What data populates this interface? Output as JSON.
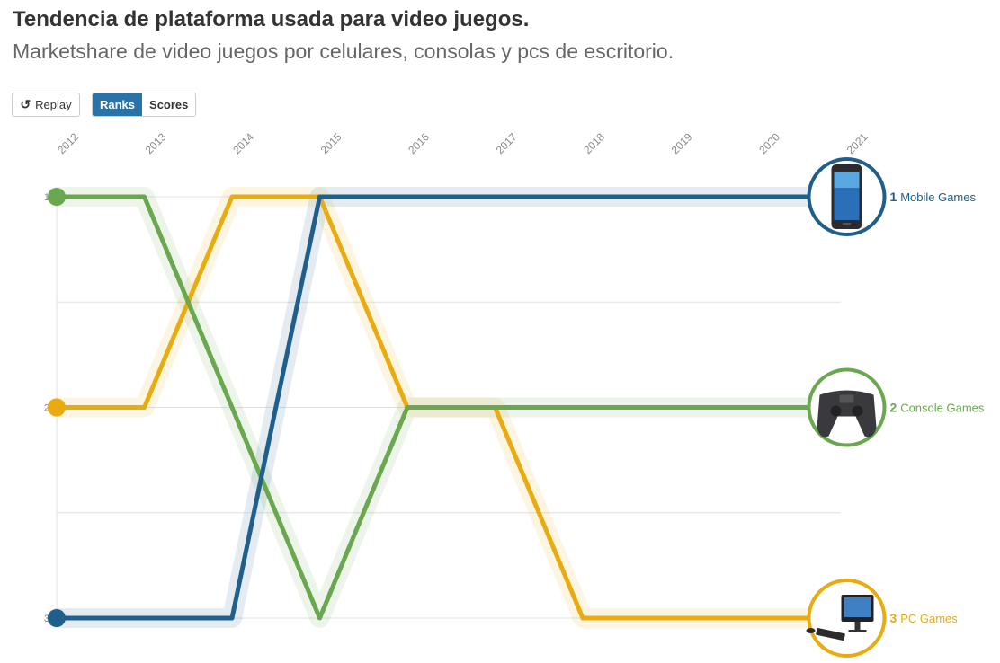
{
  "title": "Tendencia de plataforma usada para video juegos.",
  "subtitle": "Marketshare de video juegos por celulares, consolas y pcs de escritorio.",
  "controls": {
    "replay_label": "Replay",
    "replay_icon": "replay-icon",
    "ranks_label": "Ranks",
    "scores_label": "Scores",
    "active_tab": "Ranks"
  },
  "colors": {
    "mobile": "#1f5f8b",
    "console": "#6aa84f",
    "pc": "#e8ac10",
    "grid": "#e0e0e0",
    "active_tab": "#2a73a7"
  },
  "chart_data": {
    "type": "line",
    "x": [
      "2012",
      "2013",
      "2014",
      "2015",
      "2016",
      "2017",
      "2018",
      "2019",
      "2020",
      "2021"
    ],
    "y_ticks": [
      "1",
      "2",
      "3"
    ],
    "ylim": [
      1,
      3
    ],
    "y_inverted": true,
    "grid": true,
    "series": [
      {
        "key": "mobile",
        "name": "Mobile Games",
        "final_rank": "1",
        "icon": "smartphone-icon",
        "values": [
          3,
          3,
          3,
          1,
          1,
          1,
          1,
          1,
          1,
          1
        ]
      },
      {
        "key": "console",
        "name": "Console Games",
        "final_rank": "2",
        "icon": "gamepad-icon",
        "values": [
          1,
          1,
          2,
          3,
          2,
          2,
          2,
          2,
          2,
          2
        ]
      },
      {
        "key": "pc",
        "name": "PC Games",
        "final_rank": "3",
        "icon": "desktop-computer-icon",
        "values": [
          2,
          2,
          1,
          1,
          2,
          2,
          3,
          3,
          3,
          3
        ]
      }
    ]
  }
}
